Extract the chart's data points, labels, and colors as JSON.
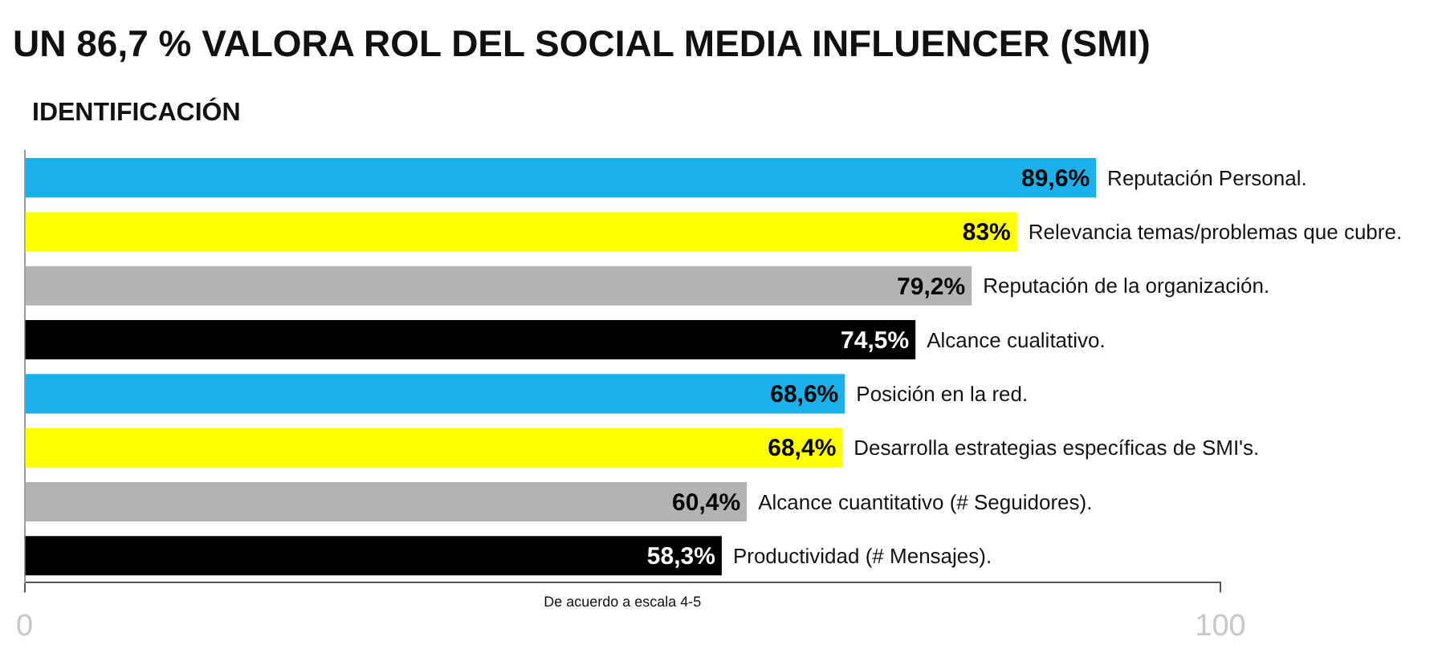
{
  "chart_data": {
    "type": "bar",
    "orientation": "horizontal",
    "title": "UN 86,7 % VALORA ROL DEL SOCIAL MEDIA INFLUENCER (SMI)",
    "subtitle": "IDENTIFICACIÓN",
    "xlabel": "De acuerdo a escala 4-5",
    "categories": [
      "Reputación Personal.",
      "Relevancia temas/problemas que cubre.",
      "Reputación de la organización.",
      "Alcance cualitativo.",
      "Posición en la red.",
      "Desarrolla estrategias específicas de SMI's.",
      "Alcance cuantitativo (# Seguidores).",
      "Productividad (# Mensajes)."
    ],
    "values": [
      89.6,
      83,
      79.2,
      74.5,
      68.6,
      68.4,
      60.4,
      58.3
    ],
    "value_labels": [
      "89,6%",
      "83%",
      "79,2%",
      "74,5%",
      "68,6%",
      "68,4%",
      "60,4%",
      "58,3%"
    ],
    "colors": [
      "#1ab0ea",
      "#ffff00",
      "#b3b3b3",
      "#000000",
      "#1ab0ea",
      "#ffff00",
      "#b3b3b3",
      "#000000"
    ],
    "xlim": [
      0,
      100
    ],
    "xticks": [
      0,
      100
    ],
    "grid": false,
    "legend": false
  }
}
